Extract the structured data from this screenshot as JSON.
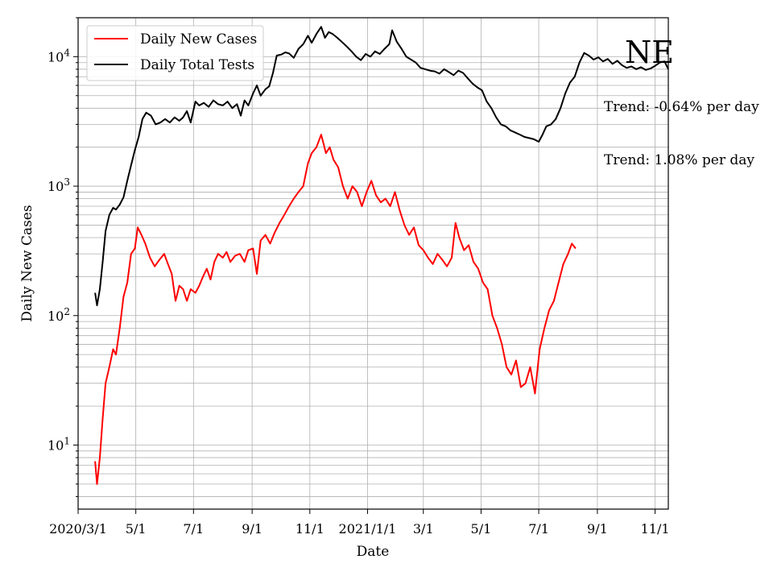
{
  "chart_data": {
    "type": "line",
    "title": "",
    "xlabel": "Date",
    "ylabel": "Daily New Cases",
    "yscale": "log",
    "ylim": [
      3.2,
      20000
    ],
    "xlim": [
      "2020-03-01",
      "2021-11-15"
    ],
    "grid": true,
    "legend": "top-left",
    "x_ticks": [
      {
        "date": "2020-03-01",
        "label": "2020/3/1"
      },
      {
        "date": "2020-05-01",
        "label": "5/1"
      },
      {
        "date": "2020-07-01",
        "label": "7/1"
      },
      {
        "date": "2020-09-01",
        "label": "9/1"
      },
      {
        "date": "2020-11-01",
        "label": "11/1"
      },
      {
        "date": "2021-01-01",
        "label": "2021/1/1"
      },
      {
        "date": "2021-03-01",
        "label": "3/1"
      },
      {
        "date": "2021-05-01",
        "label": "5/1"
      },
      {
        "date": "2021-07-01",
        "label": "7/1"
      },
      {
        "date": "2021-09-01",
        "label": "9/1"
      },
      {
        "date": "2021-11-01",
        "label": "11/1"
      }
    ],
    "y_ticks": [
      {
        "value": 10,
        "base": "10",
        "exp": "1"
      },
      {
        "value": 100,
        "base": "10",
        "exp": "2"
      },
      {
        "value": 1000,
        "base": "10",
        "exp": "3"
      },
      {
        "value": 10000,
        "base": "10",
        "exp": "4"
      }
    ],
    "series": [
      {
        "name": "Daily Total Tests",
        "color": "#000000",
        "points": [
          [
            "2020-03-19",
            150
          ],
          [
            "2020-03-21",
            120
          ],
          [
            "2020-03-24",
            160
          ],
          [
            "2020-03-27",
            260
          ],
          [
            "2020-03-30",
            450
          ],
          [
            "2020-04-03",
            600
          ],
          [
            "2020-04-07",
            680
          ],
          [
            "2020-04-10",
            660
          ],
          [
            "2020-04-14",
            720
          ],
          [
            "2020-04-18",
            820
          ],
          [
            "2020-04-22",
            1100
          ],
          [
            "2020-04-26",
            1450
          ],
          [
            "2020-04-30",
            1900
          ],
          [
            "2020-05-04",
            2400
          ],
          [
            "2020-05-08",
            3300
          ],
          [
            "2020-05-12",
            3700
          ],
          [
            "2020-05-17",
            3500
          ],
          [
            "2020-05-22",
            3000
          ],
          [
            "2020-05-27",
            3100
          ],
          [
            "2020-06-01",
            3300
          ],
          [
            "2020-06-06",
            3100
          ],
          [
            "2020-06-11",
            3400
          ],
          [
            "2020-06-16",
            3200
          ],
          [
            "2020-06-20",
            3400
          ],
          [
            "2020-06-24",
            3800
          ],
          [
            "2020-06-28",
            3100
          ],
          [
            "2020-07-03",
            4500
          ],
          [
            "2020-07-07",
            4200
          ],
          [
            "2020-07-12",
            4400
          ],
          [
            "2020-07-17",
            4100
          ],
          [
            "2020-07-22",
            4600
          ],
          [
            "2020-07-27",
            4300
          ],
          [
            "2020-08-01",
            4200
          ],
          [
            "2020-08-06",
            4500
          ],
          [
            "2020-08-11",
            4000
          ],
          [
            "2020-08-16",
            4300
          ],
          [
            "2020-08-20",
            3500
          ],
          [
            "2020-08-24",
            4600
          ],
          [
            "2020-08-28",
            4200
          ],
          [
            "2020-09-02",
            5200
          ],
          [
            "2020-09-06",
            6000
          ],
          [
            "2020-09-10",
            5000
          ],
          [
            "2020-09-15",
            5600
          ],
          [
            "2020-09-19",
            5900
          ],
          [
            "2020-09-23",
            7500
          ],
          [
            "2020-09-27",
            10200
          ],
          [
            "2020-10-02",
            10400
          ],
          [
            "2020-10-06",
            10800
          ],
          [
            "2020-10-10",
            10600
          ],
          [
            "2020-10-15",
            9800
          ],
          [
            "2020-10-20",
            11500
          ],
          [
            "2020-10-25",
            12500
          ],
          [
            "2020-10-30",
            14500
          ],
          [
            "2020-11-03",
            12800
          ],
          [
            "2020-11-08",
            15000
          ],
          [
            "2020-11-13",
            17000
          ],
          [
            "2020-11-17",
            14000
          ],
          [
            "2020-11-21",
            15500
          ],
          [
            "2020-11-25",
            15000
          ],
          [
            "2020-11-30",
            14000
          ],
          [
            "2020-12-05",
            13000
          ],
          [
            "2020-12-10",
            12000
          ],
          [
            "2020-12-15",
            11000
          ],
          [
            "2020-12-20",
            10000
          ],
          [
            "2020-12-25",
            9400
          ],
          [
            "2020-12-30",
            10500
          ],
          [
            "2021-01-04",
            10000
          ],
          [
            "2021-01-09",
            11000
          ],
          [
            "2021-01-14",
            10500
          ],
          [
            "2021-01-19",
            11500
          ],
          [
            "2021-01-24",
            12500
          ],
          [
            "2021-01-27",
            16000
          ],
          [
            "2021-02-01",
            13000
          ],
          [
            "2021-02-06",
            11500
          ],
          [
            "2021-02-11",
            10000
          ],
          [
            "2021-02-16",
            9500
          ],
          [
            "2021-02-21",
            9000
          ],
          [
            "2021-02-26",
            8200
          ],
          [
            "2021-03-03",
            8000
          ],
          [
            "2021-03-08",
            7800
          ],
          [
            "2021-03-13",
            7700
          ],
          [
            "2021-03-18",
            7400
          ],
          [
            "2021-03-23",
            8000
          ],
          [
            "2021-03-28",
            7600
          ],
          [
            "2021-04-02",
            7200
          ],
          [
            "2021-04-07",
            7800
          ],
          [
            "2021-04-12",
            7500
          ],
          [
            "2021-04-17",
            6800
          ],
          [
            "2021-04-22",
            6200
          ],
          [
            "2021-04-27",
            5800
          ],
          [
            "2021-05-02",
            5500
          ],
          [
            "2021-05-07",
            4500
          ],
          [
            "2021-05-12",
            4000
          ],
          [
            "2021-05-17",
            3400
          ],
          [
            "2021-05-22",
            3000
          ],
          [
            "2021-05-27",
            2900
          ],
          [
            "2021-06-01",
            2700
          ],
          [
            "2021-06-06",
            2600
          ],
          [
            "2021-06-11",
            2500
          ],
          [
            "2021-06-16",
            2400
          ],
          [
            "2021-06-21",
            2350
          ],
          [
            "2021-06-26",
            2300
          ],
          [
            "2021-07-01",
            2200
          ],
          [
            "2021-07-05",
            2500
          ],
          [
            "2021-07-09",
            2900
          ],
          [
            "2021-07-14",
            3000
          ],
          [
            "2021-07-19",
            3300
          ],
          [
            "2021-07-24",
            4000
          ],
          [
            "2021-07-29",
            5200
          ],
          [
            "2021-08-03",
            6300
          ],
          [
            "2021-08-08",
            7000
          ],
          [
            "2021-08-13",
            9000
          ],
          [
            "2021-08-18",
            10700
          ],
          [
            "2021-08-23",
            10200
          ],
          [
            "2021-08-28",
            9500
          ],
          [
            "2021-09-02",
            9900
          ],
          [
            "2021-09-07",
            9200
          ],
          [
            "2021-09-12",
            9600
          ],
          [
            "2021-09-17",
            8800
          ],
          [
            "2021-09-22",
            9300
          ],
          [
            "2021-09-27",
            8600
          ],
          [
            "2021-10-02",
            8200
          ],
          [
            "2021-10-07",
            8400
          ],
          [
            "2021-10-12",
            8000
          ],
          [
            "2021-10-17",
            8300
          ],
          [
            "2021-10-22",
            7900
          ],
          [
            "2021-10-27",
            8100
          ],
          [
            "2021-11-01",
            8500
          ],
          [
            "2021-11-06",
            9000
          ],
          [
            "2021-11-11",
            9200
          ],
          [
            "2021-11-15",
            8000
          ]
        ]
      },
      {
        "name": "Daily New Cases",
        "color": "#ff0000",
        "points": [
          [
            "2020-03-19",
            7.5
          ],
          [
            "2020-03-21",
            5
          ],
          [
            "2020-03-24",
            8
          ],
          [
            "2020-03-27",
            16
          ],
          [
            "2020-03-30",
            30
          ],
          [
            "2020-04-03",
            40
          ],
          [
            "2020-04-07",
            55
          ],
          [
            "2020-04-10",
            50
          ],
          [
            "2020-04-14",
            80
          ],
          [
            "2020-04-18",
            140
          ],
          [
            "2020-04-22",
            180
          ],
          [
            "2020-04-26",
            300
          ],
          [
            "2020-04-30",
            330
          ],
          [
            "2020-05-03",
            480
          ],
          [
            "2020-05-07",
            420
          ],
          [
            "2020-05-11",
            360
          ],
          [
            "2020-05-16",
            280
          ],
          [
            "2020-05-21",
            240
          ],
          [
            "2020-05-26",
            270
          ],
          [
            "2020-05-31",
            300
          ],
          [
            "2020-06-04",
            250
          ],
          [
            "2020-06-08",
            210
          ],
          [
            "2020-06-12",
            130
          ],
          [
            "2020-06-16",
            170
          ],
          [
            "2020-06-20",
            160
          ],
          [
            "2020-06-24",
            130
          ],
          [
            "2020-06-28",
            160
          ],
          [
            "2020-07-03",
            150
          ],
          [
            "2020-07-07",
            170
          ],
          [
            "2020-07-11",
            200
          ],
          [
            "2020-07-15",
            230
          ],
          [
            "2020-07-19",
            190
          ],
          [
            "2020-07-23",
            260
          ],
          [
            "2020-07-27",
            300
          ],
          [
            "2020-08-01",
            280
          ],
          [
            "2020-08-05",
            310
          ],
          [
            "2020-08-09",
            260
          ],
          [
            "2020-08-14",
            290
          ],
          [
            "2020-08-19",
            300
          ],
          [
            "2020-08-24",
            260
          ],
          [
            "2020-08-28",
            320
          ],
          [
            "2020-09-02",
            330
          ],
          [
            "2020-09-06",
            210
          ],
          [
            "2020-09-10",
            380
          ],
          [
            "2020-09-15",
            420
          ],
          [
            "2020-09-20",
            360
          ],
          [
            "2020-09-25",
            440
          ],
          [
            "2020-09-30",
            520
          ],
          [
            "2020-10-05",
            600
          ],
          [
            "2020-10-10",
            700
          ],
          [
            "2020-10-15",
            800
          ],
          [
            "2020-10-20",
            900
          ],
          [
            "2020-10-25",
            1000
          ],
          [
            "2020-10-30",
            1500
          ],
          [
            "2020-11-03",
            1800
          ],
          [
            "2020-11-08",
            2000
          ],
          [
            "2020-11-13",
            2500
          ],
          [
            "2020-11-18",
            1800
          ],
          [
            "2020-11-22",
            2000
          ],
          [
            "2020-11-26",
            1600
          ],
          [
            "2020-12-01",
            1400
          ],
          [
            "2020-12-06",
            1000
          ],
          [
            "2020-12-11",
            800
          ],
          [
            "2020-12-16",
            1000
          ],
          [
            "2020-12-21",
            900
          ],
          [
            "2020-12-26",
            700
          ],
          [
            "2020-12-31",
            900
          ],
          [
            "2021-01-05",
            1100
          ],
          [
            "2021-01-10",
            850
          ],
          [
            "2021-01-15",
            750
          ],
          [
            "2021-01-20",
            800
          ],
          [
            "2021-01-25",
            700
          ],
          [
            "2021-01-30",
            900
          ],
          [
            "2021-02-04",
            650
          ],
          [
            "2021-02-09",
            500
          ],
          [
            "2021-02-14",
            420
          ],
          [
            "2021-02-19",
            480
          ],
          [
            "2021-02-24",
            350
          ],
          [
            "2021-03-01",
            320
          ],
          [
            "2021-03-06",
            280
          ],
          [
            "2021-03-11",
            250
          ],
          [
            "2021-03-16",
            300
          ],
          [
            "2021-03-21",
            270
          ],
          [
            "2021-03-26",
            240
          ],
          [
            "2021-03-31",
            280
          ],
          [
            "2021-04-04",
            520
          ],
          [
            "2021-04-08",
            400
          ],
          [
            "2021-04-13",
            320
          ],
          [
            "2021-04-18",
            350
          ],
          [
            "2021-04-23",
            260
          ],
          [
            "2021-04-28",
            230
          ],
          [
            "2021-05-03",
            180
          ],
          [
            "2021-05-08",
            160
          ],
          [
            "2021-05-13",
            100
          ],
          [
            "2021-05-18",
            80
          ],
          [
            "2021-05-23",
            60
          ],
          [
            "2021-05-28",
            40
          ],
          [
            "2021-06-02",
            35
          ],
          [
            "2021-06-07",
            45
          ],
          [
            "2021-06-12",
            28
          ],
          [
            "2021-06-17",
            30
          ],
          [
            "2021-06-22",
            40
          ],
          [
            "2021-06-27",
            25
          ],
          [
            "2021-07-02",
            55
          ],
          [
            "2021-07-07",
            80
          ],
          [
            "2021-07-12",
            110
          ],
          [
            "2021-07-17",
            130
          ],
          [
            "2021-07-22",
            180
          ],
          [
            "2021-07-27",
            250
          ],
          [
            "2021-08-01",
            300
          ],
          [
            "2021-08-05",
            360
          ],
          [
            "2021-08-09",
            330
          ]
        ]
      }
    ],
    "annotations": [
      {
        "text": "NE",
        "role": "state-label"
      },
      {
        "text": "Trend: -0.64% per day",
        "role": "tests-trend"
      },
      {
        "text": "Trend: 1.08% per day",
        "role": "cases-trend"
      }
    ]
  }
}
